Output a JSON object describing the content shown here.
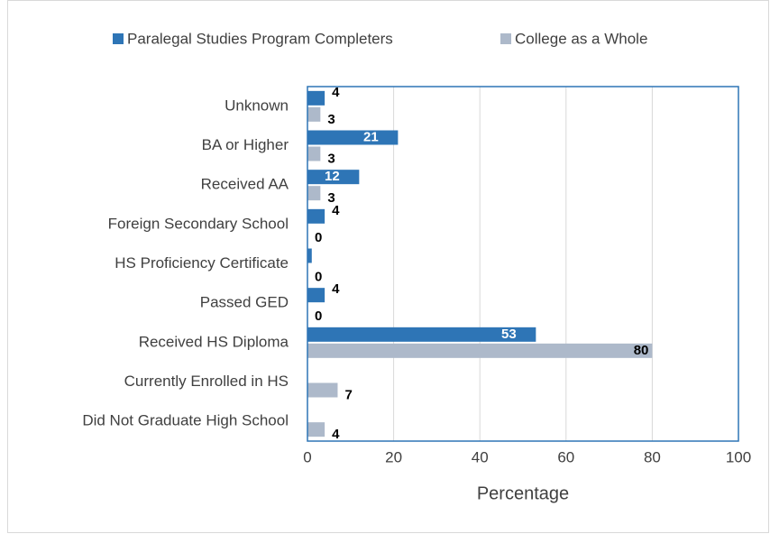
{
  "chart_data": {
    "type": "bar",
    "orientation": "horizontal",
    "categories": [
      "Unknown",
      "BA or Higher",
      "Received AA",
      "Foreign Secondary School",
      "HS Proficiency Certificate",
      "Passed GED",
      "Received HS Diploma",
      "Currently Enrolled in HS",
      "Did Not Graduate High School"
    ],
    "series": [
      {
        "name": "Paralegal Studies Program Completers",
        "color": "#2e75b6",
        "values": [
          4,
          21,
          12,
          4,
          1,
          4,
          53,
          null,
          null
        ],
        "value_labels": [
          "4",
          "21",
          "12",
          "4",
          null,
          "4",
          "53",
          null,
          null
        ]
      },
      {
        "name": "College as a Whole",
        "color": "#adb9ca",
        "values": [
          3,
          3,
          3,
          0,
          0,
          0,
          80,
          7,
          4
        ]
      }
    ],
    "x_label": "Percentage",
    "xlim": [
      0,
      100
    ],
    "xticks": [
      0,
      20,
      40,
      60,
      80,
      100
    ],
    "grid": true,
    "legend": "top"
  }
}
